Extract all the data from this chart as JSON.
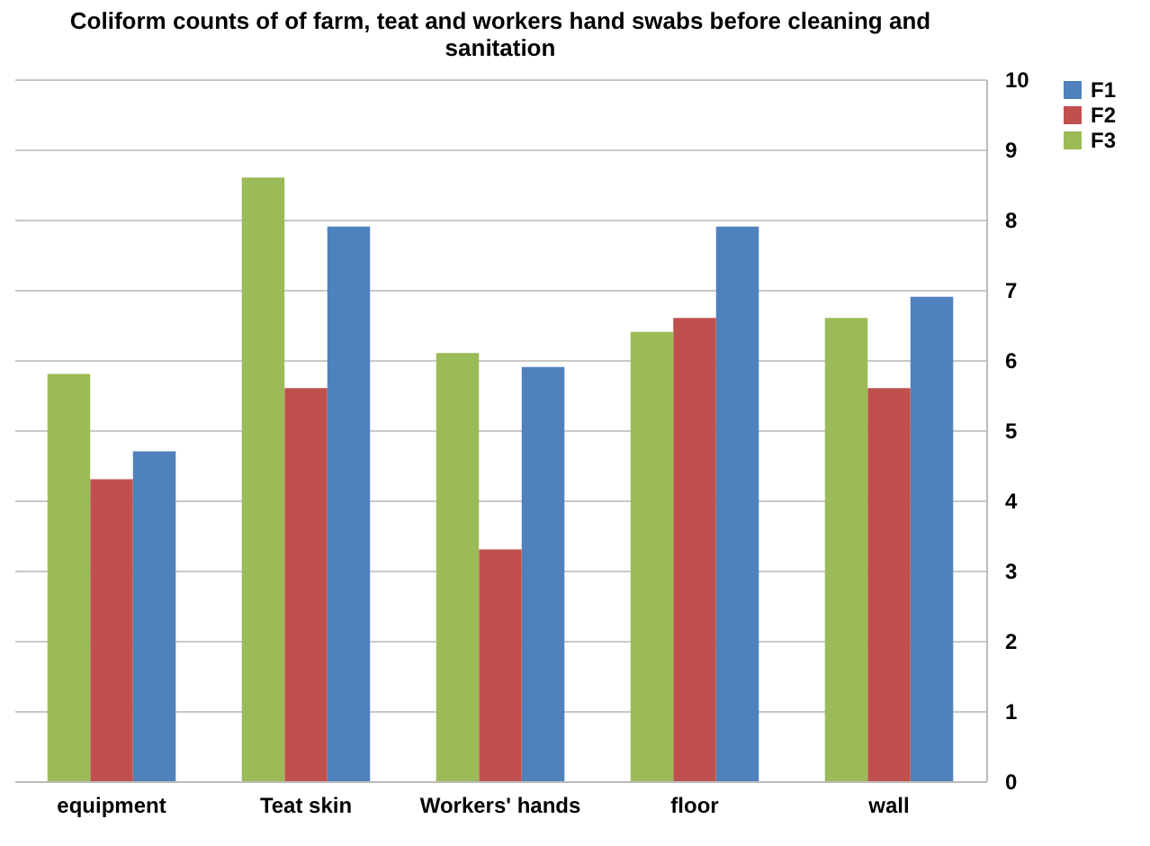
{
  "chart_data": {
    "type": "bar",
    "title": "Coliform counts of of farm, teat and workers hand swabs before cleaning and sanitation",
    "categories": [
      "equipment",
      "Teat skin",
      "Workers' hands",
      "floor",
      "wall"
    ],
    "series": [
      {
        "name": "F1",
        "color": "#4f81bd",
        "values": [
          4.7,
          7.9,
          5.9,
          7.9,
          6.9
        ]
      },
      {
        "name": "F2",
        "color": "#c0504d",
        "values": [
          4.3,
          5.6,
          3.3,
          6.6,
          5.6
        ]
      },
      {
        "name": "F3",
        "color": "#9bbb59",
        "values": [
          5.8,
          8.6,
          6.1,
          6.4,
          6.6
        ]
      }
    ],
    "ylim": [
      0,
      10
    ],
    "yticks": [
      0,
      1,
      2,
      3,
      4,
      5,
      6,
      7,
      8,
      9,
      10
    ],
    "grid": "y",
    "legend": "right"
  }
}
